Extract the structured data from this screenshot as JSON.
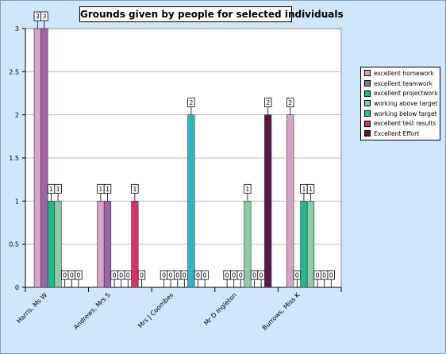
{
  "chart_data": {
    "type": "bar",
    "title": "Grounds given by people for selected individuals",
    "categories": [
      "Harris, Ms W",
      "Andrews, Mrs S",
      "Mrs J Coombes",
      "Mr D Ingleton",
      "Burrows, Miss K"
    ],
    "ylim": [
      0,
      3
    ],
    "yticks": [
      "0",
      "0.5",
      "1",
      "1.5",
      "2",
      "2.5",
      "3"
    ],
    "grid": true,
    "legend_position": "right",
    "series": [
      {
        "name": "excellent homework",
        "color": "#d7a3c8",
        "values": [
          3,
          1,
          0,
          0,
          2
        ]
      },
      {
        "name": "excellent teamwork",
        "color": "#a063a8",
        "values": [
          3,
          1,
          0,
          0,
          0
        ]
      },
      {
        "name": "excellent project work",
        "color": "#1fb886",
        "values": [
          1,
          0,
          0,
          0,
          1
        ]
      },
      {
        "name": "working above target",
        "color": "#8ccba6",
        "values": [
          1,
          0,
          0,
          1,
          1
        ]
      },
      {
        "name": "working below target",
        "color": "#2ab7c6",
        "values": [
          0,
          0,
          2,
          0,
          0
        ]
      },
      {
        "name": "excellent test results",
        "color": "#dc2f6e",
        "values": [
          0,
          1,
          0,
          0,
          0
        ]
      },
      {
        "name": "Excellent Effort",
        "color": "#5e1847",
        "values": [
          0,
          0,
          0,
          2,
          0
        ]
      }
    ]
  },
  "legend": {
    "items": [
      {
        "label": "excellent homework",
        "color": "#d7a3c8"
      },
      {
        "label": "excellent teamwork",
        "color": "#a063a8"
      },
      {
        "label": "excellent projectwork",
        "color": "#1fb886"
      },
      {
        "label": "working above target",
        "color": "#8ccba6"
      },
      {
        "label": "working below target",
        "color": "#2ab7c6"
      },
      {
        "label": "excellent test results",
        "color": "#dc2f6e"
      },
      {
        "label": "Excellent Effort",
        "color": "#5e1847"
      }
    ]
  }
}
